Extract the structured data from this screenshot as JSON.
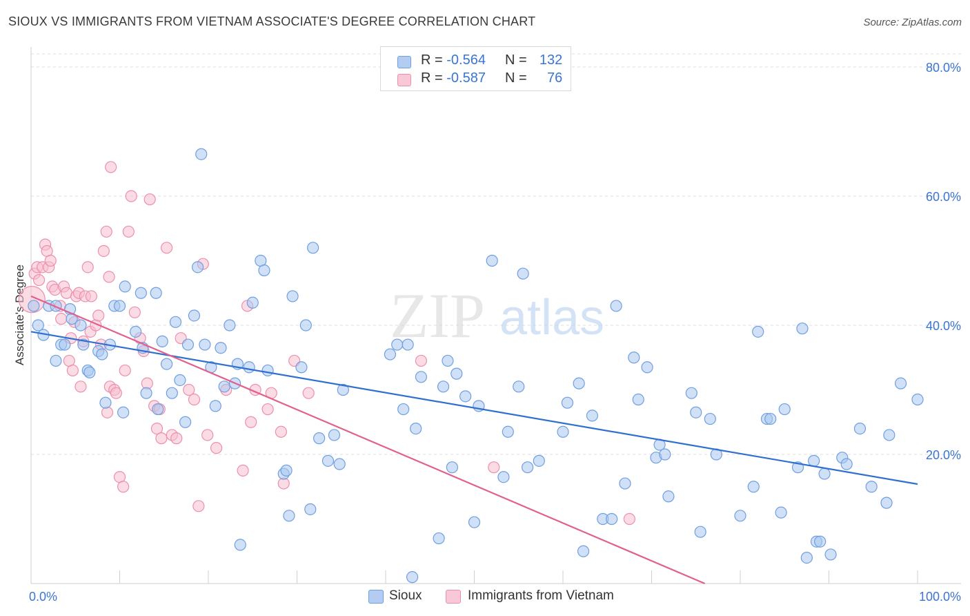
{
  "title": "SIOUX VS IMMIGRANTS FROM VIETNAM ASSOCIATE'S DEGREE CORRELATION CHART",
  "source": "Source: ZipAtlas.com",
  "watermark": {
    "zip": "ZIP",
    "atlas": "atlas"
  },
  "legend_top": {
    "rows": [
      {
        "r_label": "R = ",
        "r_value": "-0.564",
        "n_label": "N = ",
        "n_value": "132"
      },
      {
        "r_label": "R = ",
        "r_value": "-0.587",
        "n_label": "N = ",
        "n_value": "76"
      }
    ]
  },
  "legend_bottom": {
    "items": [
      "Sioux",
      "Immigrants from Vietnam"
    ]
  },
  "colors": {
    "sioux_fill": "#aac8f0",
    "sioux_stroke": "#6f9ee0",
    "sioux_line": "#2f6fd0",
    "vietnam_fill": "#f7bfd0",
    "vietnam_stroke": "#ec8fad",
    "vietnam_line": "#e0608f",
    "axis_label": "#3a74d4",
    "grid": "#dddddd"
  },
  "chart_data": {
    "type": "scatter",
    "title": "SIOUX VS IMMIGRANTS FROM VIETNAM ASSOCIATE'S DEGREE CORRELATION CHART",
    "xlabel": "",
    "ylabel": "Associate's Degree",
    "xlim": [
      0,
      100
    ],
    "ylim": [
      0,
      80
    ],
    "x_tick_labels": [
      "0.0%",
      "100.0%"
    ],
    "y_tick_labels": [
      "20.0%",
      "40.0%",
      "60.0%",
      "80.0%"
    ],
    "y_ticks": [
      20,
      40,
      60,
      80
    ],
    "grid": "horizontal dashed",
    "legend": "top-center",
    "series": [
      {
        "name": "Sioux",
        "trend": {
          "x": [
            0,
            100
          ],
          "y": [
            39.0,
            15.4
          ]
        },
        "points": [
          [
            0.3,
            43.0
          ],
          [
            1.4,
            38.5
          ],
          [
            0.8,
            40.0
          ],
          [
            2.0,
            43.0
          ],
          [
            2.8,
            43.0
          ],
          [
            2.8,
            34.5
          ],
          [
            3.4,
            37.0
          ],
          [
            3.8,
            37.0
          ],
          [
            4.4,
            42.5
          ],
          [
            4.6,
            41.0
          ],
          [
            5.6,
            40.0
          ],
          [
            5.9,
            37.0
          ],
          [
            6.4,
            33.0
          ],
          [
            6.6,
            32.7
          ],
          [
            7.6,
            36.0
          ],
          [
            8.0,
            35.5
          ],
          [
            8.4,
            28.0
          ],
          [
            8.9,
            37.0
          ],
          [
            9.4,
            43.0
          ],
          [
            10.0,
            43.0
          ],
          [
            10.4,
            26.5
          ],
          [
            10.6,
            46.0
          ],
          [
            11.8,
            39.0
          ],
          [
            12.4,
            45.0
          ],
          [
            12.6,
            36.5
          ],
          [
            13.0,
            29.5
          ],
          [
            14.1,
            45.0
          ],
          [
            14.3,
            27.0
          ],
          [
            14.8,
            37.5
          ],
          [
            15.3,
            34.0
          ],
          [
            15.9,
            29.5
          ],
          [
            16.3,
            40.5
          ],
          [
            16.8,
            31.5
          ],
          [
            17.4,
            25.0
          ],
          [
            17.7,
            37.0
          ],
          [
            18.4,
            41.5
          ],
          [
            18.8,
            49.0
          ],
          [
            19.2,
            66.5
          ],
          [
            19.6,
            37.0
          ],
          [
            20.3,
            33.5
          ],
          [
            20.8,
            27.5
          ],
          [
            21.4,
            36.5
          ],
          [
            21.8,
            30.5
          ],
          [
            22.4,
            40.0
          ],
          [
            23.0,
            31.0
          ],
          [
            23.3,
            34.0
          ],
          [
            24.6,
            33.5
          ],
          [
            25.0,
            43.5
          ],
          [
            25.9,
            50.0
          ],
          [
            26.3,
            48.5
          ],
          [
            26.7,
            33.0
          ],
          [
            28.5,
            17.0
          ],
          [
            28.8,
            17.5
          ],
          [
            29.1,
            10.5
          ],
          [
            29.5,
            44.5
          ],
          [
            30.5,
            33.5
          ],
          [
            31.0,
            40.0
          ],
          [
            31.5,
            11.5
          ],
          [
            31.8,
            52.0
          ],
          [
            32.5,
            22.5
          ],
          [
            33.5,
            19.0
          ],
          [
            34.2,
            23.0
          ],
          [
            34.8,
            18.5
          ],
          [
            35.2,
            30.0
          ],
          [
            23.6,
            6.0
          ],
          [
            40.5,
            35.5
          ],
          [
            41.3,
            37.0
          ],
          [
            42.0,
            27.0
          ],
          [
            42.5,
            37.0
          ],
          [
            43.0,
            1.0
          ],
          [
            43.4,
            24.0
          ],
          [
            44.0,
            32.0
          ],
          [
            46.0,
            7.0
          ],
          [
            46.5,
            30.5
          ],
          [
            47.0,
            34.5
          ],
          [
            47.5,
            18.0
          ],
          [
            48.0,
            32.5
          ],
          [
            49.0,
            29.0
          ],
          [
            50.0,
            9.5
          ],
          [
            50.5,
            27.5
          ],
          [
            52.0,
            50.0
          ],
          [
            53.3,
            16.5
          ],
          [
            53.8,
            23.5
          ],
          [
            55.0,
            30.5
          ],
          [
            55.5,
            48.0
          ],
          [
            56.0,
            18.0
          ],
          [
            57.3,
            19.0
          ],
          [
            60.0,
            23.5
          ],
          [
            60.5,
            28.0
          ],
          [
            61.8,
            31.0
          ],
          [
            62.3,
            5.0
          ],
          [
            63.3,
            26.0
          ],
          [
            64.5,
            10.0
          ],
          [
            65.5,
            10.0
          ],
          [
            66.0,
            43.0
          ],
          [
            67.0,
            15.5
          ],
          [
            68.0,
            35.0
          ],
          [
            68.5,
            28.5
          ],
          [
            69.5,
            33.5
          ],
          [
            70.5,
            19.5
          ],
          [
            70.9,
            21.5
          ],
          [
            71.5,
            20.0
          ],
          [
            71.9,
            13.5
          ],
          [
            74.5,
            29.5
          ],
          [
            75.0,
            26.5
          ],
          [
            75.5,
            8.0
          ],
          [
            76.6,
            25.5
          ],
          [
            77.3,
            20.0
          ],
          [
            80.0,
            10.5
          ],
          [
            81.5,
            15.0
          ],
          [
            82.0,
            39.0
          ],
          [
            83.0,
            25.5
          ],
          [
            83.4,
            25.5
          ],
          [
            84.6,
            11.0
          ],
          [
            85.0,
            27.0
          ],
          [
            86.5,
            18.0
          ],
          [
            87.0,
            39.5
          ],
          [
            87.5,
            4.0
          ],
          [
            88.3,
            19.0
          ],
          [
            88.6,
            6.5
          ],
          [
            89.0,
            6.5
          ],
          [
            89.5,
            17.0
          ],
          [
            90.2,
            4.5
          ],
          [
            91.5,
            19.5
          ],
          [
            92.0,
            18.5
          ],
          [
            93.5,
            24.0
          ],
          [
            94.8,
            15.0
          ],
          [
            96.5,
            12.5
          ],
          [
            96.8,
            23.0
          ],
          [
            98.1,
            31.0
          ],
          [
            100.0,
            28.5
          ]
        ]
      },
      {
        "name": "Immigrants from Vietnam",
        "trend": {
          "x": [
            0,
            76
          ],
          "y": [
            44.5,
            0.0
          ]
        },
        "points": [
          [
            0.1,
            44.0
          ],
          [
            0.4,
            48.0
          ],
          [
            0.7,
            49.0
          ],
          [
            0.9,
            47.0
          ],
          [
            1.3,
            49.0
          ],
          [
            1.6,
            52.5
          ],
          [
            1.8,
            51.5
          ],
          [
            2.0,
            49.0
          ],
          [
            2.2,
            50.0
          ],
          [
            2.4,
            46.0
          ],
          [
            2.7,
            45.5
          ],
          [
            3.3,
            43.0
          ],
          [
            3.4,
            41.0
          ],
          [
            3.7,
            46.0
          ],
          [
            4.0,
            45.0
          ],
          [
            4.3,
            34.5
          ],
          [
            4.5,
            38.0
          ],
          [
            4.9,
            40.5
          ],
          [
            5.1,
            44.5
          ],
          [
            5.4,
            45.0
          ],
          [
            5.6,
            30.5
          ],
          [
            5.9,
            37.5
          ],
          [
            6.1,
            44.5
          ],
          [
            6.4,
            49.0
          ],
          [
            6.7,
            39.0
          ],
          [
            6.8,
            44.5
          ],
          [
            7.3,
            40.0
          ],
          [
            7.6,
            41.5
          ],
          [
            7.9,
            37.0
          ],
          [
            8.2,
            51.5
          ],
          [
            8.5,
            54.5
          ],
          [
            8.6,
            26.5
          ],
          [
            8.9,
            30.5
          ],
          [
            9.0,
            64.5
          ],
          [
            9.4,
            30.0
          ],
          [
            9.6,
            29.5
          ],
          [
            10.0,
            16.5
          ],
          [
            10.4,
            15.0
          ],
          [
            10.6,
            33.0
          ],
          [
            11.0,
            54.5
          ],
          [
            11.3,
            60.0
          ],
          [
            11.7,
            42.0
          ],
          [
            12.3,
            38.0
          ],
          [
            12.7,
            36.0
          ],
          [
            13.1,
            31.0
          ],
          [
            13.4,
            59.5
          ],
          [
            13.9,
            27.5
          ],
          [
            14.2,
            24.0
          ],
          [
            14.5,
            27.0
          ],
          [
            14.7,
            22.5
          ],
          [
            15.3,
            52.0
          ],
          [
            15.9,
            23.0
          ],
          [
            16.4,
            22.5
          ],
          [
            16.9,
            38.0
          ],
          [
            17.8,
            30.0
          ],
          [
            18.4,
            28.5
          ],
          [
            18.9,
            12.0
          ],
          [
            19.4,
            49.5
          ],
          [
            19.9,
            23.0
          ],
          [
            20.9,
            21.0
          ],
          [
            22.0,
            30.0
          ],
          [
            23.9,
            17.5
          ],
          [
            24.4,
            43.0
          ],
          [
            24.8,
            25.0
          ],
          [
            25.3,
            30.0
          ],
          [
            26.7,
            27.0
          ],
          [
            27.1,
            29.5
          ],
          [
            28.2,
            23.5
          ],
          [
            28.5,
            15.5
          ],
          [
            29.7,
            34.5
          ],
          [
            31.3,
            29.5
          ],
          [
            44.0,
            34.5
          ],
          [
            52.2,
            18.0
          ],
          [
            67.5,
            10.0
          ],
          [
            8.8,
            47.5
          ],
          [
            4.7,
            33.0
          ]
        ]
      }
    ]
  }
}
